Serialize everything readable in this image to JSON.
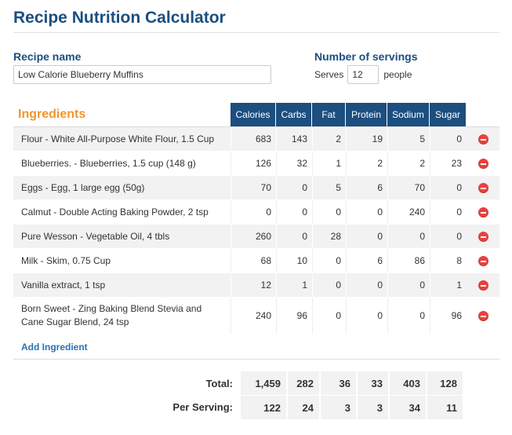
{
  "page": {
    "title": "Recipe Nutrition Calculator"
  },
  "recipe": {
    "name_label": "Recipe name",
    "name_value": "Low Calorie Blueberry Muffins"
  },
  "servings": {
    "label": "Number of servings",
    "prefix": "Serves",
    "value": "12",
    "suffix": "people"
  },
  "ingredients": {
    "heading": "Ingredients",
    "columns": [
      "Calories",
      "Carbs",
      "Fat",
      "Protein",
      "Sodium",
      "Sugar"
    ],
    "rows": [
      {
        "name": "Flour - White All-Purpose White Flour, 1.5 Cup",
        "values": [
          "683",
          "143",
          "2",
          "19",
          "5",
          "0"
        ]
      },
      {
        "name": "Blueberries. - Blueberries, 1.5 cup (148 g)",
        "values": [
          "126",
          "32",
          "1",
          "2",
          "2",
          "23"
        ]
      },
      {
        "name": "Eggs - Egg, 1 large egg (50g)",
        "values": [
          "70",
          "0",
          "5",
          "6",
          "70",
          "0"
        ]
      },
      {
        "name": "Calmut - Double Acting Baking Powder, 2 tsp",
        "values": [
          "0",
          "0",
          "0",
          "0",
          "240",
          "0"
        ]
      },
      {
        "name": "Pure Wesson - Vegetable Oil, 4 tbls",
        "values": [
          "260",
          "0",
          "28",
          "0",
          "0",
          "0"
        ]
      },
      {
        "name": "Milk - Skim, 0.75 Cup",
        "values": [
          "68",
          "10",
          "0",
          "6",
          "86",
          "8"
        ]
      },
      {
        "name": "Vanilla extract, 1 tsp",
        "values": [
          "12",
          "1",
          "0",
          "0",
          "0",
          "1"
        ]
      },
      {
        "name": "Born Sweet - Zing Baking Blend Stevia and Cane Sugar Blend, 24 tsp",
        "values": [
          "240",
          "96",
          "0",
          "0",
          "0",
          "96"
        ]
      }
    ],
    "add_label": "Add Ingredient",
    "delete_icon": "remove-circle-icon",
    "delete_color": "#e8413e"
  },
  "summary": {
    "total_label": "Total:",
    "total_values": [
      "1,459",
      "282",
      "36",
      "33",
      "403",
      "128"
    ],
    "per_serving_label": "Per Serving:",
    "per_serving_values": [
      "122",
      "24",
      "3",
      "3",
      "34",
      "11"
    ]
  },
  "colors": {
    "heading_blue": "#1c4e80",
    "ingredients_orange": "#f0962d",
    "link_blue": "#2a72b5",
    "row_stripe": "#f2f2f2"
  }
}
